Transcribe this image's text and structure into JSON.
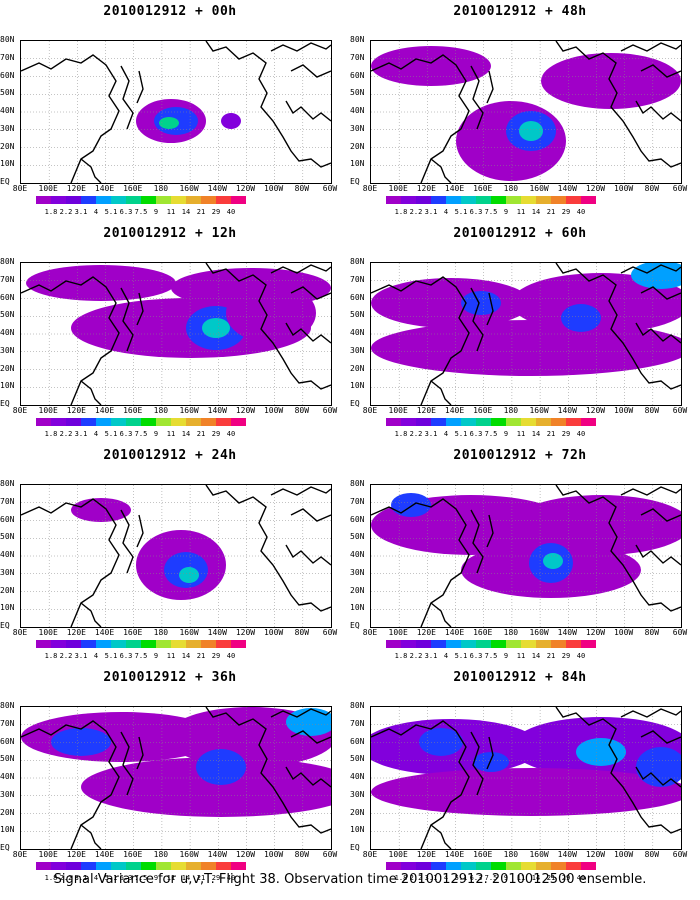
{
  "panels": [
    {
      "title": "2010012912 + 00h",
      "intensity": 0
    },
    {
      "title": "2010012912 + 48h",
      "intensity": 4
    },
    {
      "title": "2010012912 + 12h",
      "intensity": 1
    },
    {
      "title": "2010012912 + 60h",
      "intensity": 5
    },
    {
      "title": "2010012912 + 24h",
      "intensity": 2
    },
    {
      "title": "2010012912 + 72h",
      "intensity": 6
    },
    {
      "title": "2010012912 + 36h",
      "intensity": 3
    },
    {
      "title": "2010012912 + 84h",
      "intensity": 7
    }
  ],
  "lat_labels": [
    "80N",
    "70N",
    "60N",
    "50N",
    "40N",
    "30N",
    "20N",
    "10N",
    "EQ"
  ],
  "lon_labels": [
    "80E",
    "100E",
    "120E",
    "140E",
    "160E",
    "180",
    "160W",
    "140W",
    "120W",
    "100W",
    "80W",
    "60W"
  ],
  "colorbar": {
    "labels": [
      "1.8",
      "2.2",
      "3.1",
      "4",
      "5.1",
      "6.3",
      "7.5",
      "9",
      "11",
      "14",
      "21",
      "29",
      "40"
    ],
    "colors": [
      "#a000c8",
      "#8200dc",
      "#6e00dc",
      "#1e3cff",
      "#00a0ff",
      "#00c8c8",
      "#00d28c",
      "#00dc00",
      "#a0e632",
      "#e6dc32",
      "#e6af2d",
      "#f08228",
      "#fa3c3c",
      "#f00082"
    ]
  },
  "footer": "Signal Variance for u,v,T. Flight 38. Observation time 2010012912. 2010012500 ensemble."
}
